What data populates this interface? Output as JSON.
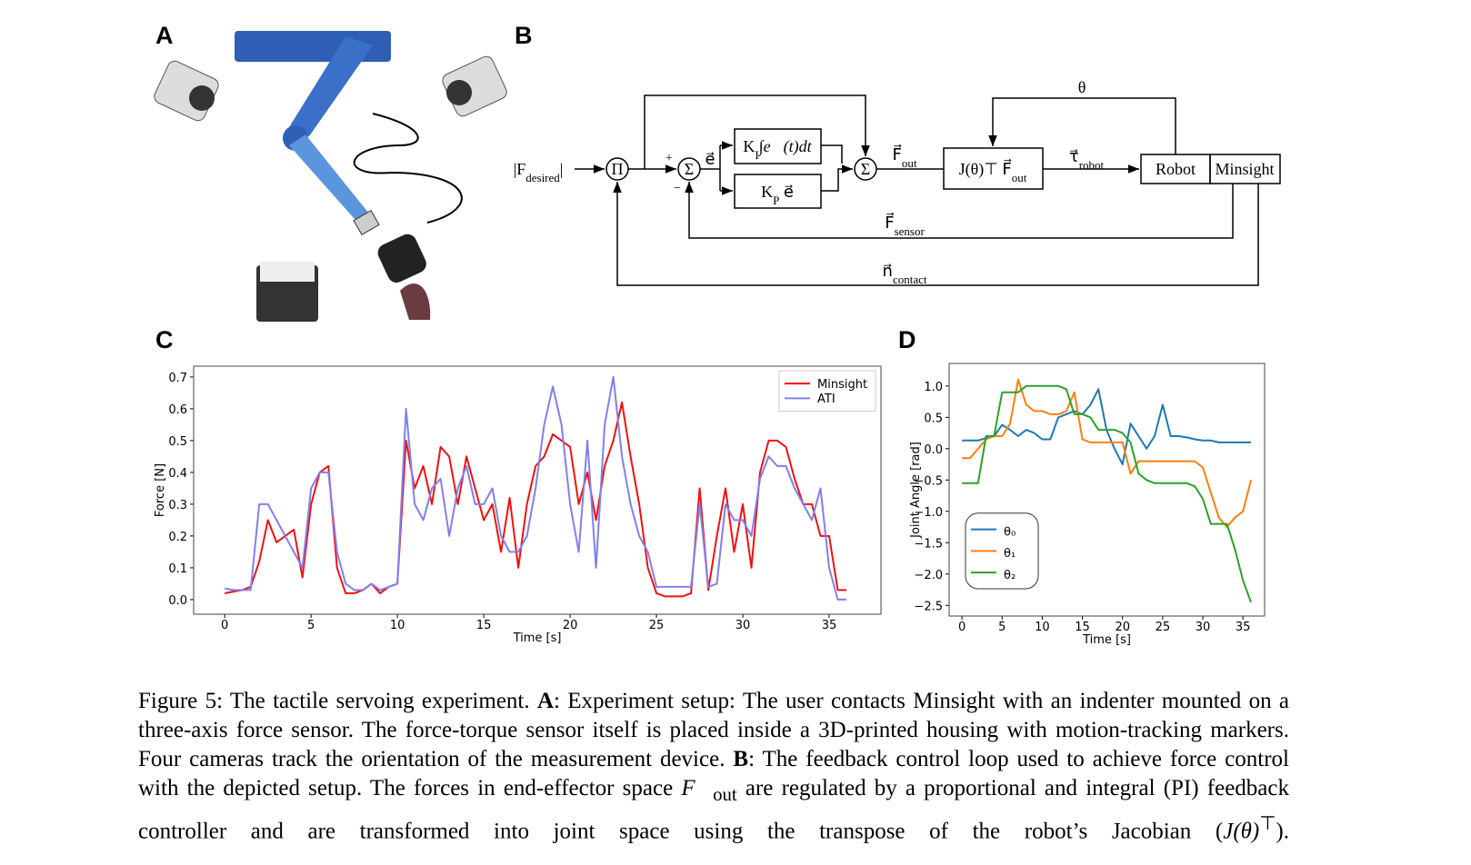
{
  "panels": [
    "A",
    "B",
    "C",
    "D"
  ],
  "diagram": {
    "theta": "θ",
    "input": {
      "main": "|F",
      "sub": "desired",
      "tail": "|"
    },
    "pi": "Π",
    "sum1": "Σ",
    "sum2": "Σ",
    "plus": "+",
    "minus": "−",
    "error": "e⃗",
    "ki": {
      "main": "K",
      "sub": "I",
      "tail": "∫e⃗(t)dt"
    },
    "kp": {
      "main": "K",
      "sub": "P",
      "tail": " e⃗"
    },
    "fout": {
      "main": "F⃗",
      "sub": "out"
    },
    "jacobian": {
      "main": "J(θ)⊤ F⃗",
      "sub": "out"
    },
    "tau": {
      "main": "τ⃗",
      "sub": "robot"
    },
    "robot": "Robot",
    "minsight": "Minsight",
    "fsensor": {
      "main": "F⃗",
      "sub": "sensor"
    },
    "ncontact": {
      "main": "n⃗",
      "sub": "contact"
    }
  },
  "chart_data": [
    {
      "type": "line",
      "xlabel": "Time [s]",
      "ylabel": "Force [N]",
      "legend": "upper right",
      "xlim": [
        -1.8,
        38
      ],
      "ylim": [
        -0.046,
        0.734
      ],
      "xticks": [
        0,
        5,
        10,
        15,
        20,
        25,
        30,
        35
      ],
      "yticks": [
        {
          "value": 0,
          "label": "0.0"
        },
        0.1,
        0.2,
        0.3,
        0.4,
        0.5,
        0.6,
        0.7
      ],
      "x": [
        0,
        0.5,
        1,
        1.5,
        2,
        2.5,
        3,
        3.5,
        4,
        4.5,
        5,
        5.5,
        6,
        6.5,
        7,
        7.5,
        8,
        8.5,
        9,
        9.5,
        10,
        10.5,
        11,
        11.5,
        12,
        12.5,
        13,
        13.5,
        14,
        14.5,
        15,
        15.5,
        16,
        16.5,
        17,
        17.5,
        18,
        18.5,
        19,
        19.5,
        20,
        20.5,
        21,
        21.5,
        22,
        22.5,
        23,
        23.5,
        24,
        24.5,
        25,
        25.5,
        26,
        26.5,
        27,
        27.5,
        28,
        28.5,
        29,
        29.5,
        30,
        30.5,
        31,
        31.5,
        32,
        32.5,
        33,
        33.5,
        34,
        34.5,
        35,
        35.5,
        36
      ],
      "series": [
        {
          "name": "Minsight",
          "color": "#ee1111",
          "values": [
            0.02,
            0.025,
            0.03,
            0.04,
            0.12,
            0.25,
            0.18,
            0.2,
            0.22,
            0.07,
            0.3,
            0.4,
            0.42,
            0.1,
            0.02,
            0.02,
            0.03,
            0.05,
            0.02,
            0.04,
            0.05,
            0.5,
            0.35,
            0.42,
            0.3,
            0.48,
            0.45,
            0.3,
            0.45,
            0.35,
            0.25,
            0.3,
            0.15,
            0.32,
            0.1,
            0.3,
            0.42,
            0.45,
            0.52,
            0.5,
            0.48,
            0.3,
            0.4,
            0.25,
            0.42,
            0.5,
            0.62,
            0.45,
            0.3,
            0.1,
            0.02,
            0.01,
            0.01,
            0.01,
            0.02,
            0.35,
            0.03,
            0.2,
            0.35,
            0.15,
            0.3,
            0.1,
            0.4,
            0.5,
            0.5,
            0.48,
            0.38,
            0.3,
            0.3,
            0.2,
            0.2,
            0.03,
            0.03
          ]
        },
        {
          "name": "ATI",
          "color": "#8080ee",
          "values": [
            0.035,
            0.03,
            0.03,
            0.03,
            0.3,
            0.3,
            0.25,
            0.2,
            0.15,
            0.1,
            0.35,
            0.4,
            0.4,
            0.15,
            0.05,
            0.03,
            0.03,
            0.05,
            0.03,
            0.04,
            0.05,
            0.6,
            0.3,
            0.25,
            0.35,
            0.38,
            0.2,
            0.35,
            0.42,
            0.3,
            0.3,
            0.35,
            0.2,
            0.15,
            0.15,
            0.2,
            0.35,
            0.55,
            0.67,
            0.55,
            0.3,
            0.15,
            0.5,
            0.1,
            0.55,
            0.7,
            0.45,
            0.3,
            0.2,
            0.15,
            0.04,
            0.04,
            0.04,
            0.04,
            0.04,
            0.3,
            0.04,
            0.05,
            0.3,
            0.25,
            0.25,
            0.2,
            0.38,
            0.45,
            0.42,
            0.42,
            0.35,
            0.3,
            0.25,
            0.35,
            0.1,
            0,
            0
          ]
        }
      ]
    },
    {
      "type": "line",
      "xlabel": "Time [s]",
      "ylabel": "Joint Angle [rad]",
      "legend": "lower left",
      "xlim": [
        -1.6,
        37.7
      ],
      "ylim": [
        -2.67,
        1.36
      ],
      "xticks": [
        0,
        5,
        10,
        15,
        20,
        25,
        30,
        35
      ],
      "yticks": [
        {
          "value": 1,
          "label": "1.0"
        },
        0.5,
        {
          "value": 0,
          "label": "0.0"
        },
        {
          "value": -0.5,
          "label": "−0.5"
        },
        {
          "value": -1,
          "label": "−1.0"
        },
        {
          "value": -1.5,
          "label": "−1.5"
        },
        {
          "value": -2,
          "label": "−2.0"
        },
        {
          "value": -2.5,
          "label": "−2.5"
        }
      ],
      "x": [
        0,
        1,
        2,
        3,
        4,
        5,
        6,
        7,
        8,
        9,
        10,
        11,
        12,
        13,
        14,
        15,
        16,
        17,
        18,
        19,
        20,
        21,
        22,
        23,
        24,
        25,
        26,
        27,
        28,
        29,
        30,
        31,
        32,
        33,
        34,
        35,
        36
      ],
      "series": [
        {
          "name": "θ₀",
          "color": "#1f77b4",
          "values": [
            0.13,
            0.13,
            0.13,
            0.17,
            0.2,
            0.38,
            0.3,
            0.2,
            0.3,
            0.25,
            0.15,
            0.15,
            0.5,
            0.55,
            0.6,
            0.55,
            0.7,
            0.95,
            0.3,
            0,
            -0.25,
            0.4,
            0.2,
            0,
            0.2,
            0.7,
            0.2,
            0.2,
            0.18,
            0.15,
            0.13,
            0.13,
            0.1,
            0.1,
            0.1,
            0.1,
            0.1
          ]
        },
        {
          "name": "θ₁",
          "color": "#ff7f0e",
          "values": [
            -0.15,
            -0.15,
            0,
            0.15,
            0.2,
            0.2,
            0.4,
            1.1,
            0.7,
            0.6,
            0.6,
            0.55,
            0.55,
            0.6,
            0.9,
            0.15,
            0.1,
            0.1,
            0.1,
            0.1,
            0.1,
            -0.4,
            -0.2,
            -0.2,
            -0.2,
            -0.2,
            -0.2,
            -0.2,
            -0.2,
            -0.2,
            -0.3,
            -0.7,
            -1.1,
            -1.25,
            -1.1,
            -1,
            -0.5
          ]
        },
        {
          "name": "θ₂",
          "color": "#2ca02c",
          "values": [
            -0.55,
            -0.55,
            -0.55,
            0.2,
            0.2,
            0.9,
            0.9,
            0.9,
            1,
            1,
            1,
            1,
            1,
            0.95,
            0.55,
            0.55,
            0.5,
            0.3,
            0.3,
            0.3,
            0.25,
            0.1,
            -0.4,
            -0.5,
            -0.55,
            -0.55,
            -0.55,
            -0.55,
            -0.55,
            -0.6,
            -0.8,
            -1.2,
            -1.2,
            -1.2,
            -1.6,
            -2.1,
            -2.45
          ]
        }
      ]
    }
  ],
  "caption": [
    "Figure 5: The tactile servoing experiment. ",
    "A",
    ": Experiment setup: The user contacts Minsight with an indenter mounted on a three-axis force sensor. The force-torque sensor itself is placed inside a 3D-printed housing with motion-tracking markers. Four cameras track the orientation of the measurement device. ",
    "B",
    ": The feedback control loop used to achieve force control with the depicted setup. The forces in end-effector space ",
    "F⃗",
    "out",
    " are regulated by a proportional and integral (PI) feedback controller and are transformed into joint space using the transpose of the robot’s Jacobian (",
    "J(θ)",
    "⊤",
    ")."
  ]
}
